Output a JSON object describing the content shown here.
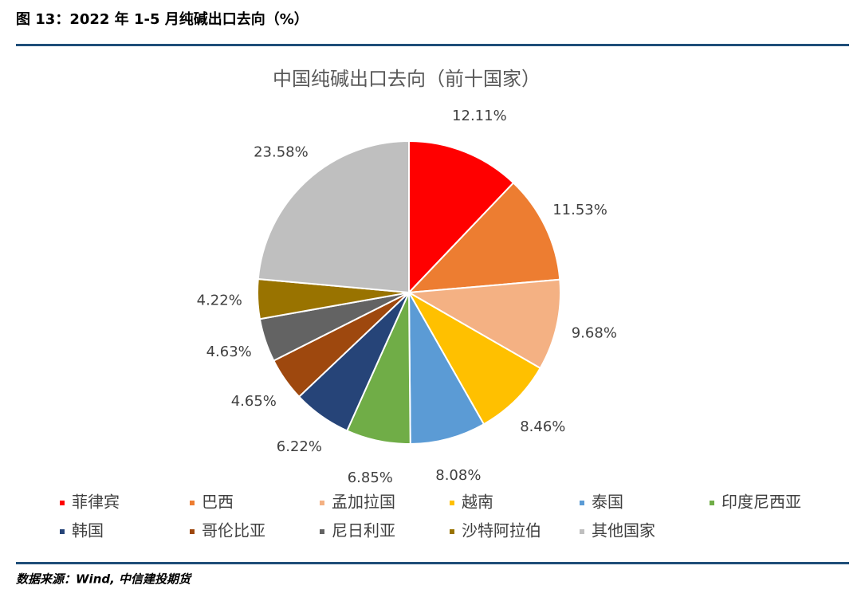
{
  "header": {
    "title": "图 13：2022 年 1-5 月纯碱出口去向（%）"
  },
  "chart_data": {
    "type": "pie",
    "title": "中国纯碱出口去向（前十国家）",
    "categories": [
      "菲律宾",
      "巴西",
      "孟加拉国",
      "越南",
      "泰国",
      "印度尼西亚",
      "韩国",
      "哥伦比亚",
      "尼日利亚",
      "沙特阿拉伯",
      "其他国家"
    ],
    "values": [
      12.11,
      11.53,
      9.68,
      8.46,
      8.08,
      6.85,
      6.22,
      4.65,
      4.63,
      4.22,
      23.58
    ],
    "value_labels": [
      "12.11%",
      "11.53%",
      "9.68%",
      "8.46%",
      "8.08%",
      "6.85%",
      "6.22%",
      "4.65%",
      "4.63%",
      "4.22%",
      "23.58%"
    ],
    "colors": [
      "#ff0000",
      "#ed7d31",
      "#f4b183",
      "#ffc000",
      "#5b9bd5",
      "#70ad47",
      "#264478",
      "#9e480e",
      "#636363",
      "#997300",
      "#bfbfbf"
    ],
    "legend": "bottom"
  },
  "footer": {
    "source": "数据来源：Wind, 中信建投期货"
  }
}
